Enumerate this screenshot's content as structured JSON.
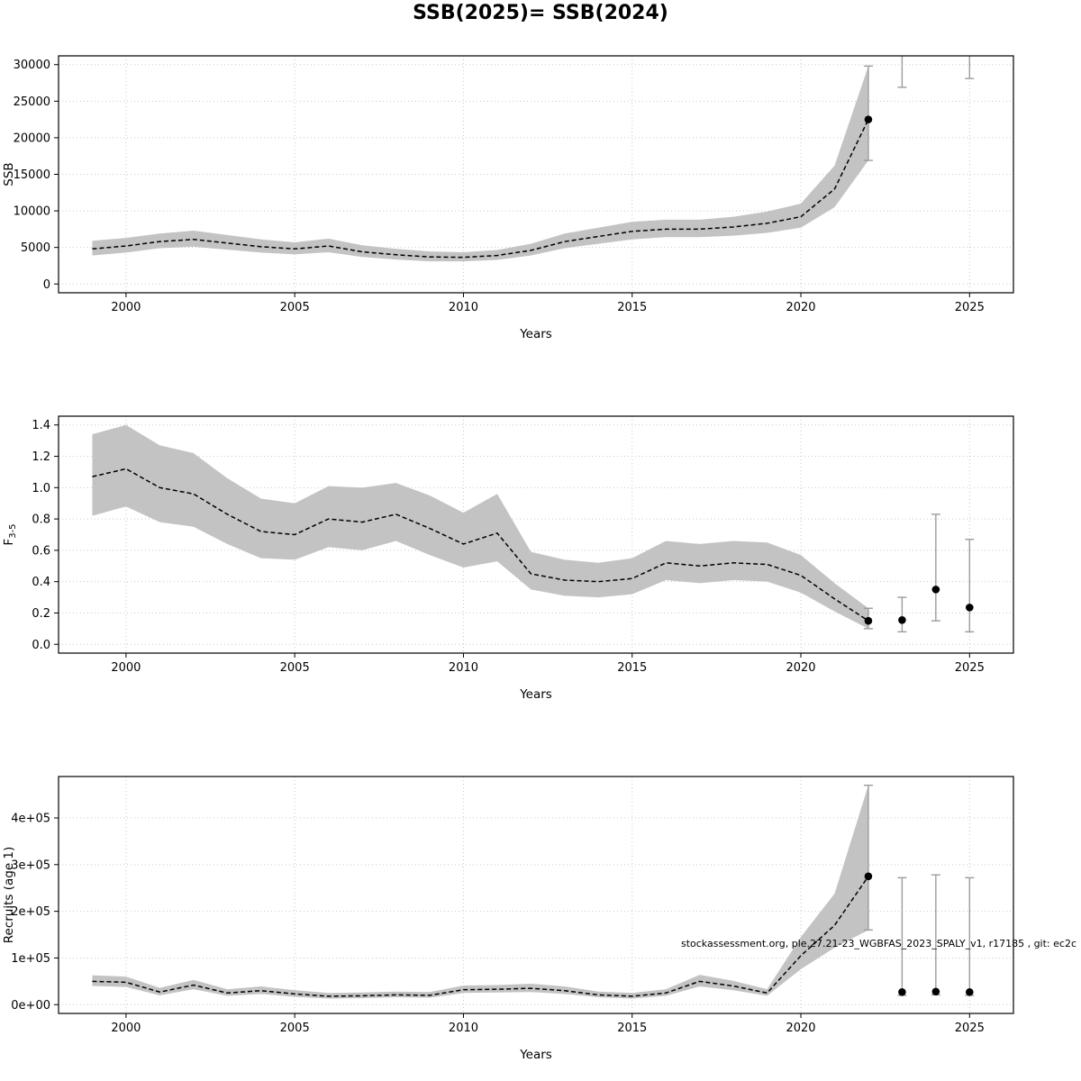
{
  "title": "SSB(2025)= SSB(2024)",
  "watermark": "stockassessment.org, ple.27.21-23_WGBFAS_2023_SPALY_v1, r17185 , git: ec2c",
  "chart_data": [
    {
      "type": "line",
      "name": "ssb",
      "title": "",
      "xlabel": "Years",
      "ylabel": {
        "text": "SSB",
        "sub": ""
      },
      "xlim": [
        1998,
        2026.3
      ],
      "ylim": [
        0,
        30000
      ],
      "grid": true,
      "xticks": [
        {
          "v": 2000,
          "label": "2000"
        },
        {
          "v": 2005,
          "label": "2005"
        },
        {
          "v": 2010,
          "label": "2010"
        },
        {
          "v": 2015,
          "label": "2015"
        },
        {
          "v": 2020,
          "label": "2020"
        },
        {
          "v": 2025,
          "label": "2025"
        }
      ],
      "yticks": [
        {
          "v": 0,
          "label": "0"
        },
        {
          "v": 5000,
          "label": "5000"
        },
        {
          "v": 10000,
          "label": "10000"
        },
        {
          "v": 15000,
          "label": "15000"
        },
        {
          "v": 20000,
          "label": "20000"
        },
        {
          "v": 25000,
          "label": "25000"
        },
        {
          "v": 30000,
          "label": "30000"
        }
      ],
      "x": [
        1999,
        2000,
        2001,
        2002,
        2003,
        2004,
        2005,
        2006,
        2007,
        2008,
        2009,
        2010,
        2011,
        2012,
        2013,
        2014,
        2015,
        2016,
        2017,
        2018,
        2019,
        2020,
        2021,
        2022
      ],
      "values": [
        4800,
        5200,
        5800,
        6100,
        5600,
        5100,
        4800,
        5200,
        4400,
        4000,
        3700,
        3650,
        3900,
        4600,
        5800,
        6500,
        7200,
        7500,
        7500,
        7800,
        8300,
        9200,
        13000,
        22500
      ],
      "band": {
        "lower": [
          3900,
          4300,
          4900,
          5100,
          4700,
          4300,
          4050,
          4350,
          3700,
          3350,
          3100,
          3100,
          3300,
          3900,
          4900,
          5500,
          6100,
          6400,
          6400,
          6600,
          7000,
          7700,
          10500,
          16900
        ],
        "upper": [
          5900,
          6300,
          6900,
          7300,
          6700,
          6100,
          5700,
          6200,
          5300,
          4800,
          4450,
          4350,
          4650,
          5500,
          6900,
          7700,
          8500,
          8800,
          8800,
          9200,
          9900,
          11000,
          16200,
          29800
        ]
      },
      "points": [
        {
          "x": 2022,
          "y": 22500
        }
      ],
      "error_bars": [
        {
          "x": 2022,
          "low": 16900,
          "high": 29800
        },
        {
          "x": 2023,
          "low": 26900,
          "high": 33000
        },
        {
          "x": 2025,
          "low": 28100,
          "high": 33000
        }
      ]
    },
    {
      "type": "line",
      "name": "fbar",
      "title": "",
      "xlabel": "Years",
      "ylabel": {
        "text": "F",
        "sub": "3-5"
      },
      "xlim": [
        1998,
        2026.3
      ],
      "ylim": [
        0,
        1.4
      ],
      "grid": true,
      "xticks": [
        {
          "v": 2000,
          "label": "2000"
        },
        {
          "v": 2005,
          "label": "2005"
        },
        {
          "v": 2010,
          "label": "2010"
        },
        {
          "v": 2015,
          "label": "2015"
        },
        {
          "v": 2020,
          "label": "2020"
        },
        {
          "v": 2025,
          "label": "2025"
        }
      ],
      "yticks": [
        {
          "v": 0.0,
          "label": "0.0"
        },
        {
          "v": 0.2,
          "label": "0.2"
        },
        {
          "v": 0.4,
          "label": "0.4"
        },
        {
          "v": 0.6,
          "label": "0.6"
        },
        {
          "v": 0.8,
          "label": "0.8"
        },
        {
          "v": 1.0,
          "label": "1.0"
        },
        {
          "v": 1.2,
          "label": "1.2"
        },
        {
          "v": 1.4,
          "label": "1.4"
        }
      ],
      "x": [
        1999,
        2000,
        2001,
        2002,
        2003,
        2004,
        2005,
        2006,
        2007,
        2008,
        2009,
        2010,
        2011,
        2012,
        2013,
        2014,
        2015,
        2016,
        2017,
        2018,
        2019,
        2020,
        2021,
        2022
      ],
      "values": [
        1.07,
        1.12,
        1.0,
        0.96,
        0.83,
        0.72,
        0.7,
        0.8,
        0.78,
        0.83,
        0.74,
        0.64,
        0.71,
        0.45,
        0.41,
        0.4,
        0.42,
        0.52,
        0.5,
        0.52,
        0.51,
        0.44,
        0.29,
        0.15
      ],
      "band": {
        "lower": [
          0.82,
          0.88,
          0.78,
          0.75,
          0.64,
          0.55,
          0.54,
          0.62,
          0.6,
          0.66,
          0.57,
          0.49,
          0.53,
          0.35,
          0.31,
          0.3,
          0.32,
          0.41,
          0.39,
          0.41,
          0.4,
          0.33,
          0.21,
          0.1
        ],
        "upper": [
          1.34,
          1.4,
          1.27,
          1.22,
          1.06,
          0.93,
          0.9,
          1.01,
          1.0,
          1.03,
          0.95,
          0.84,
          0.96,
          0.59,
          0.54,
          0.52,
          0.55,
          0.66,
          0.64,
          0.66,
          0.65,
          0.57,
          0.39,
          0.23
        ]
      },
      "points": [
        {
          "x": 2022,
          "y": 0.15
        },
        {
          "x": 2023,
          "y": 0.155
        },
        {
          "x": 2024,
          "y": 0.35
        },
        {
          "x": 2025,
          "y": 0.235
        }
      ],
      "error_bars": [
        {
          "x": 2022,
          "low": 0.1,
          "high": 0.23
        },
        {
          "x": 2023,
          "low": 0.08,
          "high": 0.3
        },
        {
          "x": 2024,
          "low": 0.15,
          "high": 0.83
        },
        {
          "x": 2025,
          "low": 0.08,
          "high": 0.67
        }
      ]
    },
    {
      "type": "line",
      "name": "recruits",
      "title": "",
      "xlabel": "Years",
      "ylabel": {
        "text": "Recruits (age 1)",
        "sub": ""
      },
      "xlim": [
        1998,
        2026.3
      ],
      "ylim": [
        0,
        470000
      ],
      "grid": true,
      "xticks": [
        {
          "v": 2000,
          "label": "2000"
        },
        {
          "v": 2005,
          "label": "2005"
        },
        {
          "v": 2010,
          "label": "2010"
        },
        {
          "v": 2015,
          "label": "2015"
        },
        {
          "v": 2020,
          "label": "2020"
        },
        {
          "v": 2025,
          "label": "2025"
        }
      ],
      "yticks": [
        {
          "v": 0,
          "label": "0e+00"
        },
        {
          "v": 100000,
          "label": "1e+05"
        },
        {
          "v": 200000,
          "label": "2e+05"
        },
        {
          "v": 300000,
          "label": "3e+05"
        },
        {
          "v": 400000,
          "label": "4e+05"
        }
      ],
      "x": [
        1999,
        2000,
        2001,
        2002,
        2003,
        2004,
        2005,
        2006,
        2007,
        2008,
        2009,
        2010,
        2011,
        2012,
        2013,
        2014,
        2015,
        2016,
        2017,
        2018,
        2019,
        2020,
        2021,
        2022
      ],
      "values": [
        50000,
        48000,
        27000,
        42000,
        25000,
        30000,
        23000,
        18000,
        19000,
        21000,
        20000,
        32000,
        33000,
        35000,
        30000,
        21000,
        18000,
        25000,
        50000,
        40000,
        25000,
        105000,
        170000,
        275000
      ],
      "band": {
        "lower": [
          40000,
          38000,
          20000,
          33000,
          19000,
          23000,
          17000,
          13000,
          14000,
          16000,
          15000,
          25000,
          26000,
          27000,
          23000,
          16000,
          13000,
          19000,
          39000,
          31000,
          19000,
          76000,
          122000,
          160000
        ],
        "upper": [
          63000,
          60000,
          36000,
          53000,
          33000,
          39000,
          31000,
          25000,
          26000,
          28000,
          27000,
          41000,
          42000,
          45000,
          39000,
          28000,
          25000,
          33000,
          64000,
          51000,
          33000,
          145000,
          238000,
          470000
        ]
      },
      "points": [
        {
          "x": 2022,
          "y": 275000
        },
        {
          "x": 2023,
          "y": 27000
        },
        {
          "x": 2024,
          "y": 28000
        },
        {
          "x": 2025,
          "y": 27000
        }
      ],
      "error_bars": [
        {
          "x": 2022,
          "low": 160000,
          "high": 470000
        },
        {
          "x": 2023,
          "low": 20000,
          "high": 272000
        },
        {
          "x": 2024,
          "low": 21000,
          "high": 278000
        },
        {
          "x": 2025,
          "low": 20000,
          "high": 272000
        }
      ]
    }
  ]
}
